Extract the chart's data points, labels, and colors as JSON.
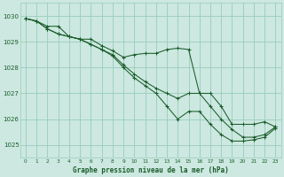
{
  "title": "Graphe pression niveau de la mer (hPa)",
  "background_color": "#cce8e0",
  "grid_color": "#99ccbb",
  "line_color": "#1a5c2a",
  "xlim": [
    -0.5,
    23.5
  ],
  "ylim": [
    1024.5,
    1030.5
  ],
  "yticks": [
    1025,
    1026,
    1027,
    1028,
    1029,
    1030
  ],
  "xticks": [
    0,
    1,
    2,
    3,
    4,
    5,
    6,
    7,
    8,
    9,
    10,
    11,
    12,
    13,
    14,
    15,
    16,
    17,
    18,
    19,
    20,
    21,
    22,
    23
  ],
  "series": [
    [
      1029.9,
      1029.8,
      1029.6,
      1029.6,
      1029.2,
      1029.1,
      1029.1,
      1028.85,
      1028.65,
      1028.4,
      1028.5,
      1028.55,
      1028.55,
      1028.7,
      1028.75,
      1028.7,
      1027.0,
      1027.0,
      1026.5,
      1025.8,
      1025.8,
      1025.8,
      1025.9,
      1025.7
    ],
    [
      1029.9,
      1029.8,
      1029.5,
      1029.3,
      1029.2,
      1029.1,
      1028.9,
      1028.7,
      1028.5,
      1028.1,
      1027.75,
      1027.45,
      1027.2,
      1027.0,
      1026.8,
      1027.0,
      1027.0,
      1026.5,
      1026.0,
      1025.6,
      1025.3,
      1025.3,
      1025.4,
      1025.7
    ],
    [
      1029.9,
      1029.8,
      1029.5,
      1029.3,
      1029.2,
      1029.1,
      1028.9,
      1028.7,
      1028.45,
      1028.0,
      1027.6,
      1027.3,
      1027.0,
      1026.5,
      1026.0,
      1026.3,
      1026.3,
      1025.8,
      1025.4,
      1025.15,
      1025.15,
      1025.2,
      1025.3,
      1025.65
    ]
  ]
}
